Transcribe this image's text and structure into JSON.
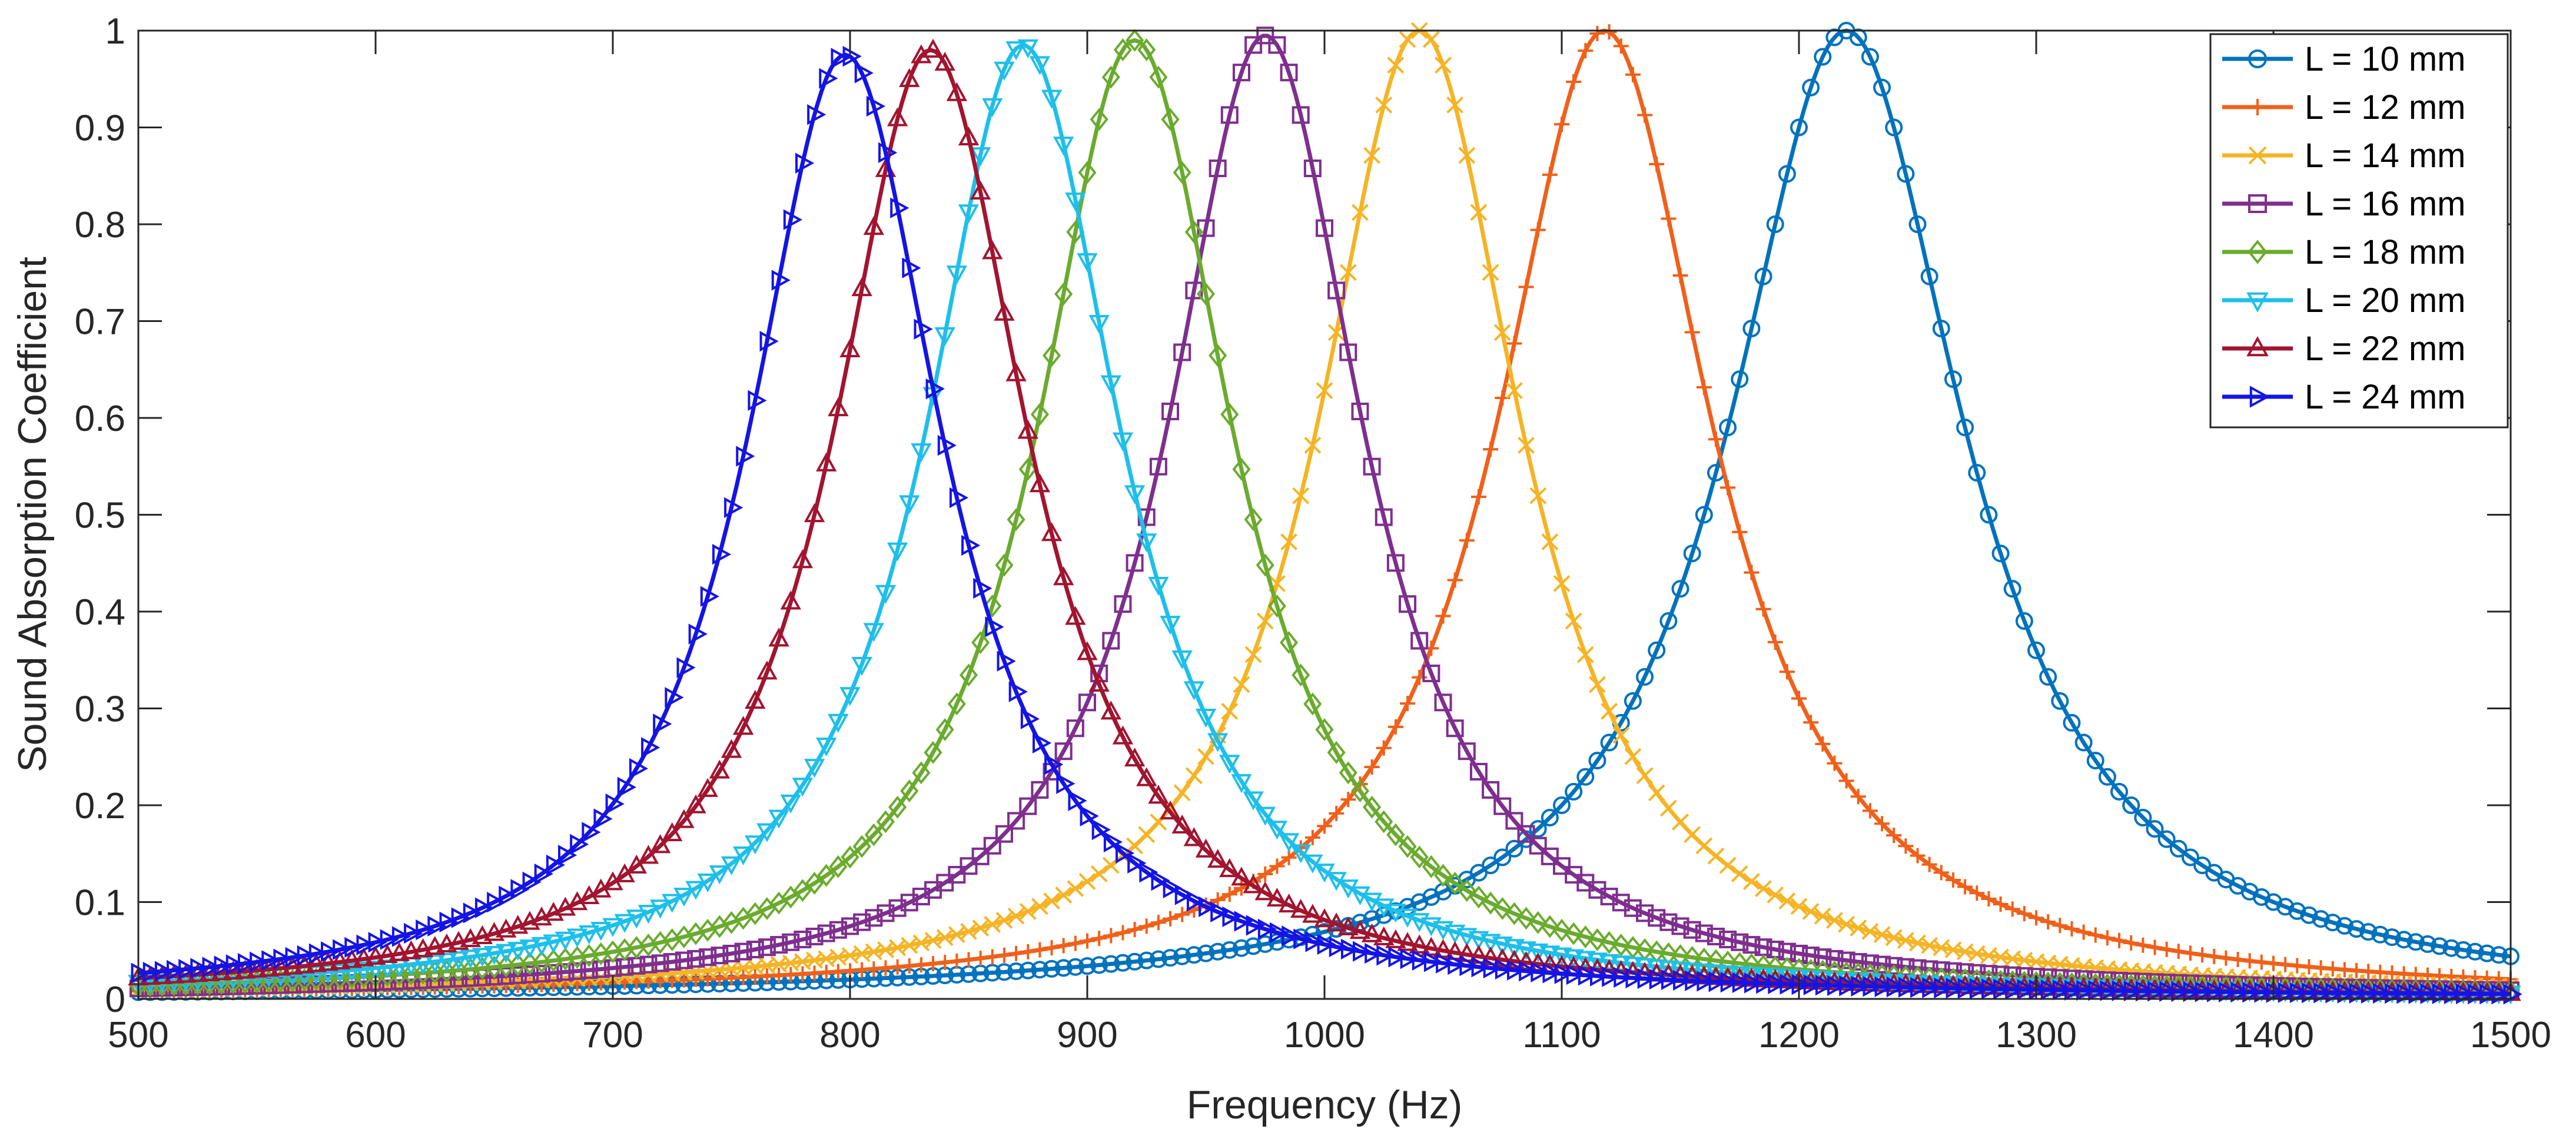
{
  "chart_data": {
    "type": "line",
    "title": "",
    "xlabel": "Frequency (Hz)",
    "ylabel": "Sound Absorption Coefficient",
    "xlim": [
      500,
      1500
    ],
    "ylim": [
      0,
      1
    ],
    "xticks": [
      500,
      600,
      700,
      800,
      900,
      1000,
      1100,
      1200,
      1300,
      1400,
      1500
    ],
    "yticks": [
      0,
      0.1,
      0.2,
      0.3,
      0.4,
      0.5,
      0.6,
      0.7,
      0.8,
      0.9,
      1
    ],
    "ytick_labels": [
      "0",
      "0.1",
      "0.2",
      "0.3",
      "0.4",
      "0.5",
      "0.6",
      "0.7",
      "0.8",
      "0.9",
      "1"
    ],
    "grid": false,
    "legend_position": "top-right",
    "x_step": 5,
    "series": [
      {
        "name": "L = 10 mm",
        "color": "#0072BD",
        "marker": "circle",
        "peak_frequency": 1220,
        "peak_value": 1.0,
        "half_width": 60,
        "baseline_value": 0.0
      },
      {
        "name": "L = 12 mm",
        "color": "#F0601A",
        "marker": "plus",
        "peak_frequency": 1118,
        "peak_value": 1.0,
        "half_width": 55,
        "baseline_value": 0.0
      },
      {
        "name": "L = 14 mm",
        "color": "#F5B425",
        "marker": "cross",
        "peak_frequency": 1040,
        "peak_value": 1.0,
        "half_width": 52,
        "baseline_value": 0.0
      },
      {
        "name": "L = 16 mm",
        "color": "#7E2F8E",
        "marker": "square",
        "peak_frequency": 975,
        "peak_value": 0.995,
        "half_width": 50,
        "baseline_value": 0.0
      },
      {
        "name": "L = 18 mm",
        "color": "#6AAB2E",
        "marker": "diamond",
        "peak_frequency": 920,
        "peak_value": 0.99,
        "half_width": 50,
        "baseline_value": 0.0
      },
      {
        "name": "L = 20 mm",
        "color": "#1EBFEA",
        "marker": "triangle-down",
        "peak_frequency": 873,
        "peak_value": 0.985,
        "half_width": 50,
        "baseline_value": 0.0
      },
      {
        "name": "L = 22 mm",
        "color": "#A2142F",
        "marker": "triangle-up",
        "peak_frequency": 834,
        "peak_value": 0.98,
        "half_width": 50,
        "baseline_value": 0.0
      },
      {
        "name": "L = 24 mm",
        "color": "#1414E6",
        "marker": "triangle-right",
        "peak_frequency": 798,
        "peak_value": 0.975,
        "half_width": 50,
        "baseline_value": 0.0
      }
    ]
  }
}
